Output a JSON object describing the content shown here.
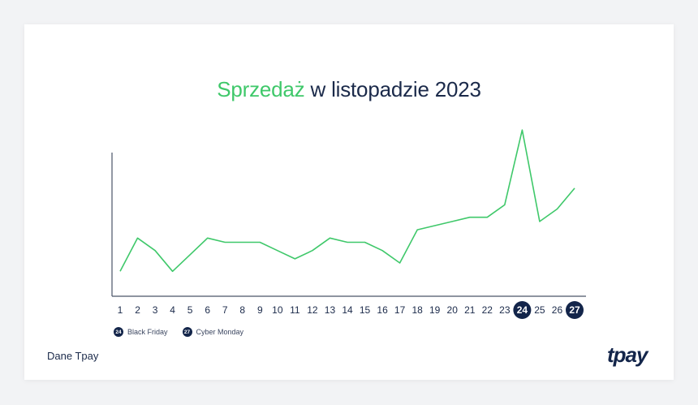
{
  "title": {
    "accent": "Sprzedaż",
    "rest": " w listopadzie 2023"
  },
  "legend": [
    {
      "day": "24",
      "label": "Black Friday"
    },
    {
      "day": "27",
      "label": "Cyber Monday"
    }
  ],
  "source": "Dane Tpay",
  "logo": "tpay",
  "colors": {
    "line": "#3fc86a",
    "accent": "#3fc86a",
    "navy": "#13254a",
    "axis": "#4a5368"
  },
  "chart_data": {
    "type": "line",
    "title": "Sprzedaż w listopadzie 2023",
    "xlabel": "",
    "ylabel": "",
    "x": [
      1,
      2,
      3,
      4,
      5,
      6,
      7,
      8,
      9,
      10,
      11,
      12,
      13,
      14,
      15,
      16,
      17,
      18,
      19,
      20,
      21,
      22,
      23,
      24,
      25,
      26,
      27
    ],
    "series": [
      {
        "values": [
          6,
          14,
          11,
          6,
          10,
          14,
          13,
          13,
          13,
          11,
          9,
          11,
          14,
          13,
          13,
          11,
          8,
          16,
          17,
          18,
          19,
          19,
          22,
          40,
          18,
          21,
          26
        ]
      }
    ],
    "highlighted_x": [
      24,
      27
    ],
    "ylim": [
      0,
      42
    ],
    "grid": false,
    "y_tick_labels": false
  }
}
